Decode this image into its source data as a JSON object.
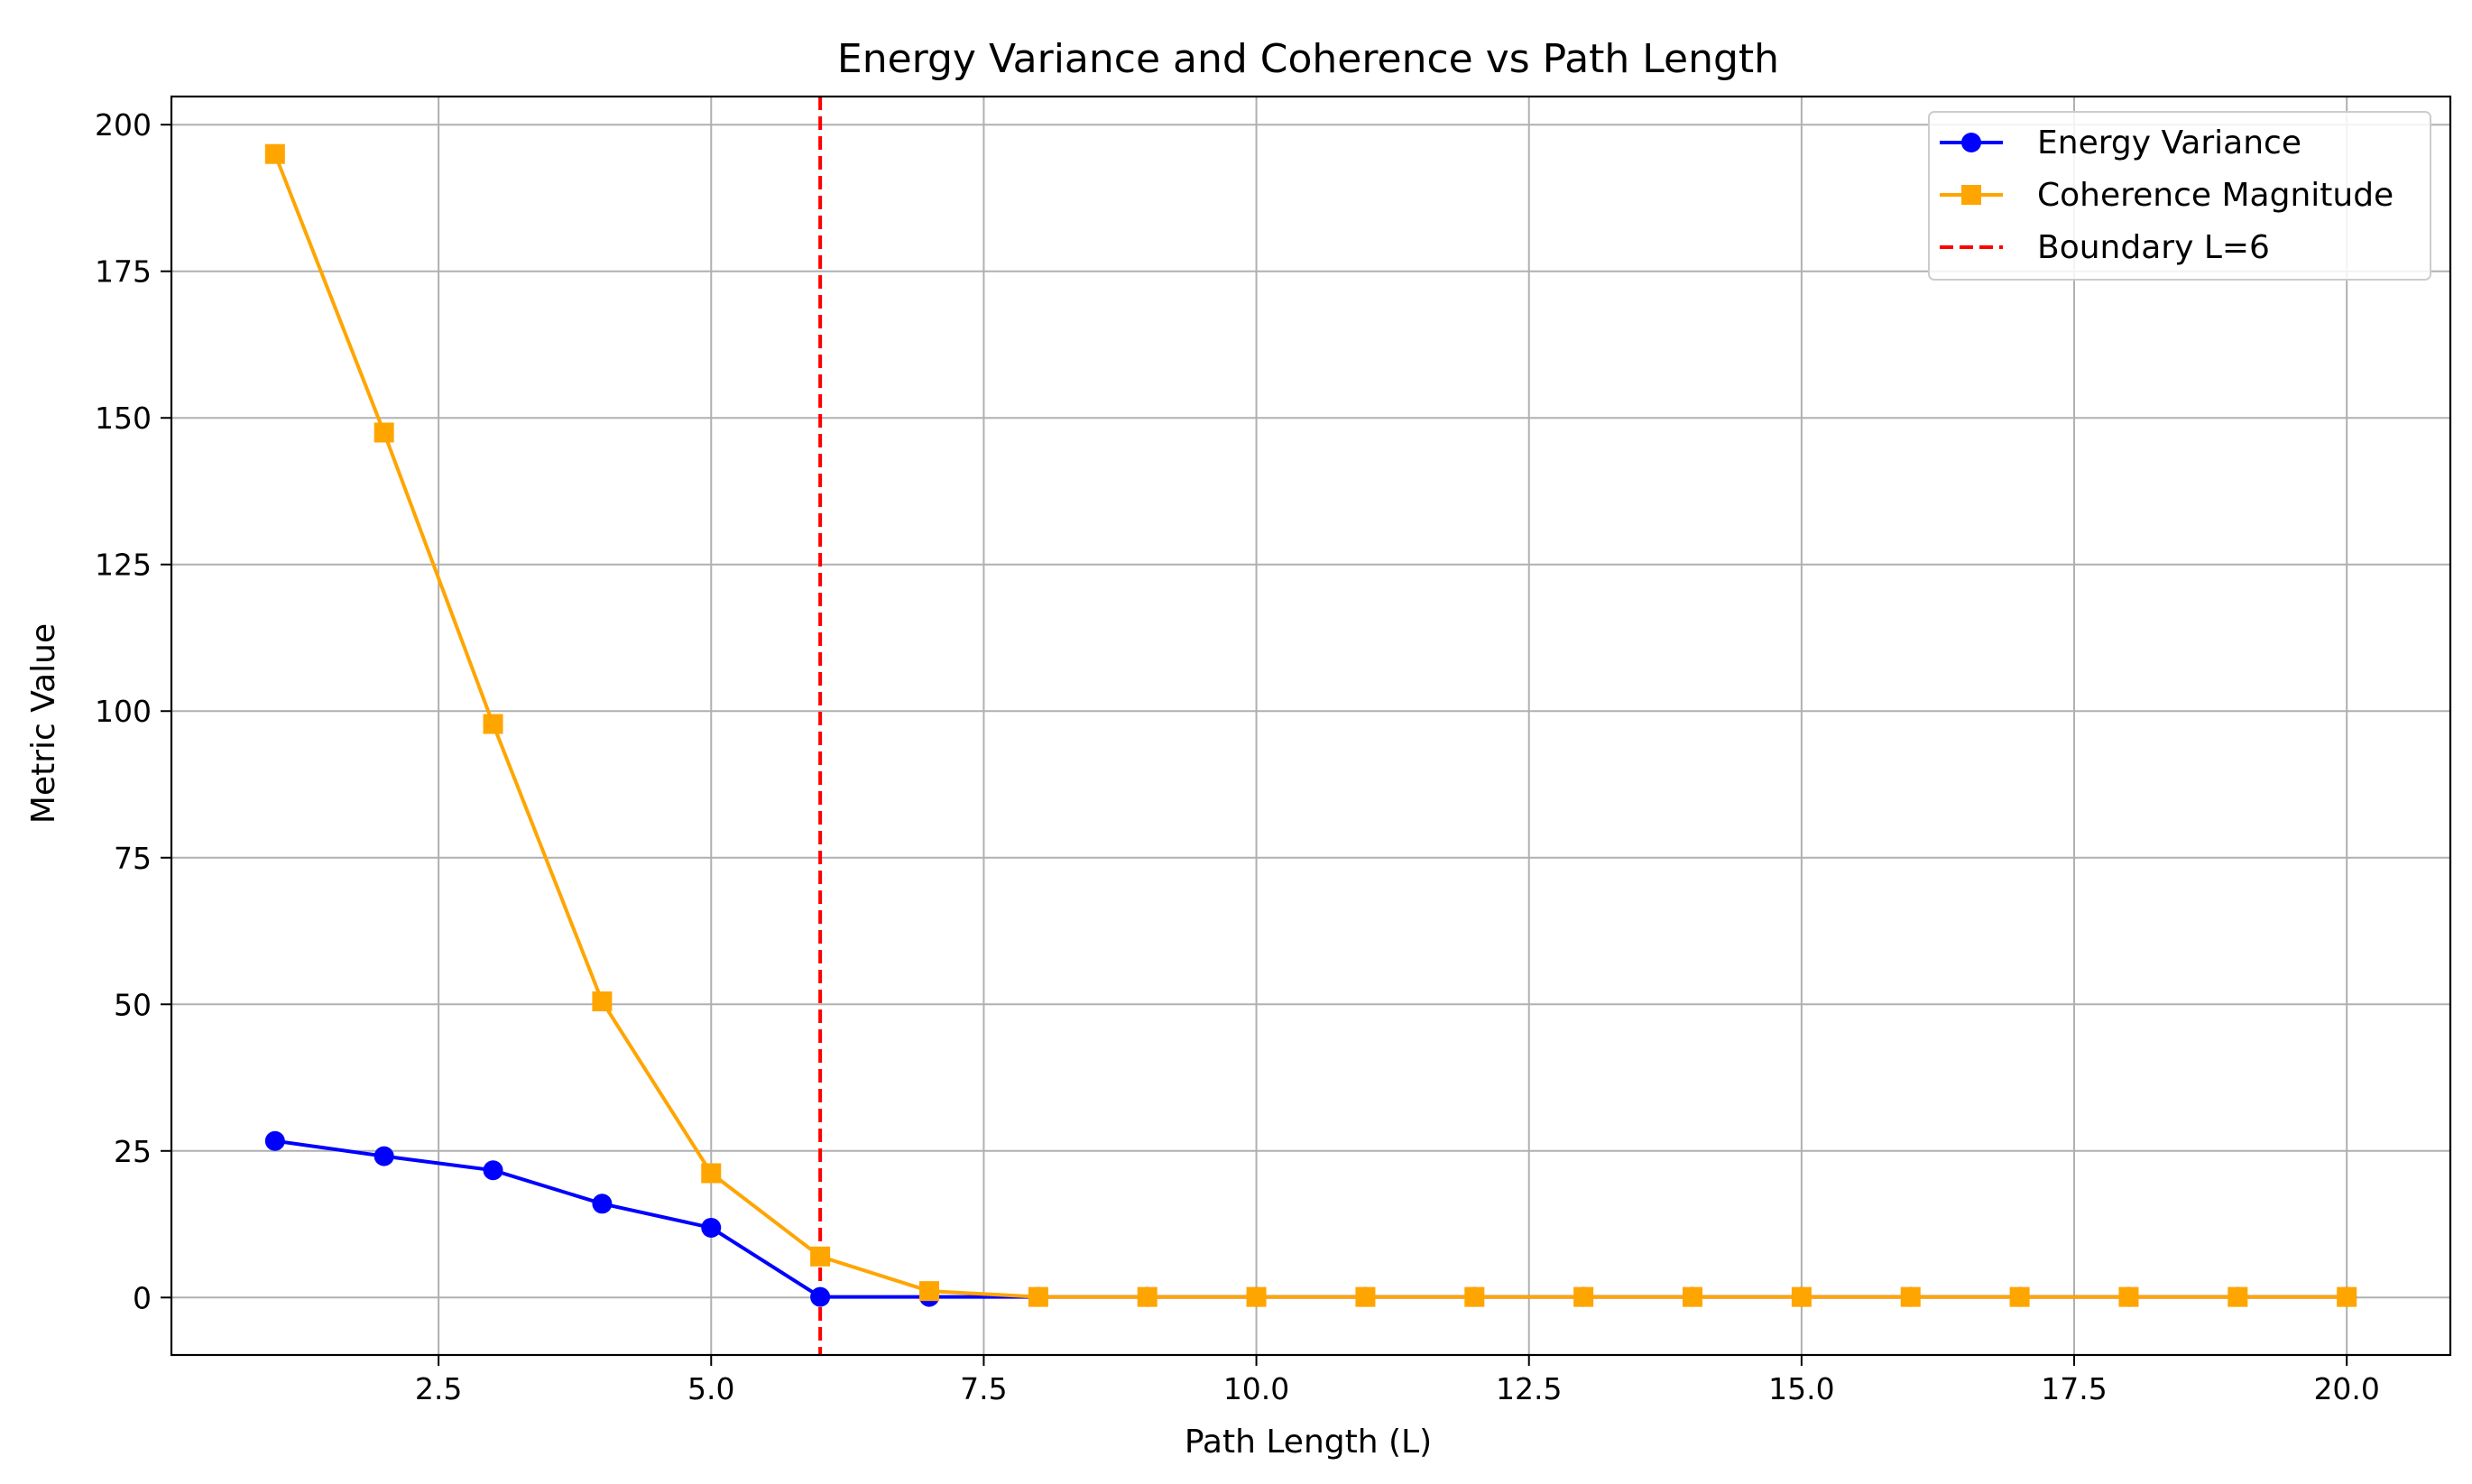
{
  "chart_data": {
    "type": "line",
    "title": "Energy Variance and Coherence vs Path Length",
    "xlabel": "Path Length (L)",
    "ylabel": "Metric Value",
    "xlim": [
      0.05,
      20.95
    ],
    "ylim": [
      -9.8,
      204.8
    ],
    "xticks": [
      2.5,
      5.0,
      7.5,
      10.0,
      12.5,
      15.0,
      17.5,
      20.0
    ],
    "xtick_labels": [
      "2.5",
      "5.0",
      "7.5",
      "10.0",
      "12.5",
      "15.0",
      "17.5",
      "20.0"
    ],
    "yticks": [
      0,
      25,
      50,
      75,
      100,
      125,
      150,
      175,
      200
    ],
    "ytick_labels": [
      "0",
      "25",
      "50",
      "75",
      "100",
      "125",
      "150",
      "175",
      "200"
    ],
    "grid": true,
    "legend_position": "top-right",
    "x": [
      1,
      2,
      3,
      4,
      5,
      6,
      7,
      8,
      9,
      10,
      11,
      12,
      13,
      14,
      15,
      16,
      17,
      18,
      19,
      20
    ],
    "series": [
      {
        "name": "Energy Variance",
        "color": "#0000ff",
        "marker": "circle",
        "values": [
          26.7,
          24.1,
          21.7,
          16.0,
          11.9,
          0.1,
          0.1,
          0.1,
          0.1,
          0.1,
          0.1,
          0.1,
          0.1,
          0.1,
          0.1,
          0.1,
          0.1,
          0.1,
          0.1,
          0.1
        ]
      },
      {
        "name": "Coherence Magnitude",
        "color": "#ffa500",
        "marker": "square",
        "values": [
          195.0,
          147.5,
          97.8,
          50.5,
          21.2,
          7.0,
          1.1,
          0.1,
          0.1,
          0.1,
          0.1,
          0.1,
          0.1,
          0.1,
          0.1,
          0.1,
          0.1,
          0.1,
          0.1,
          0.1
        ]
      }
    ],
    "vlines": [
      {
        "name": "Boundary L=6",
        "x": 6,
        "color": "#ff0000",
        "style": "dashed"
      }
    ]
  }
}
